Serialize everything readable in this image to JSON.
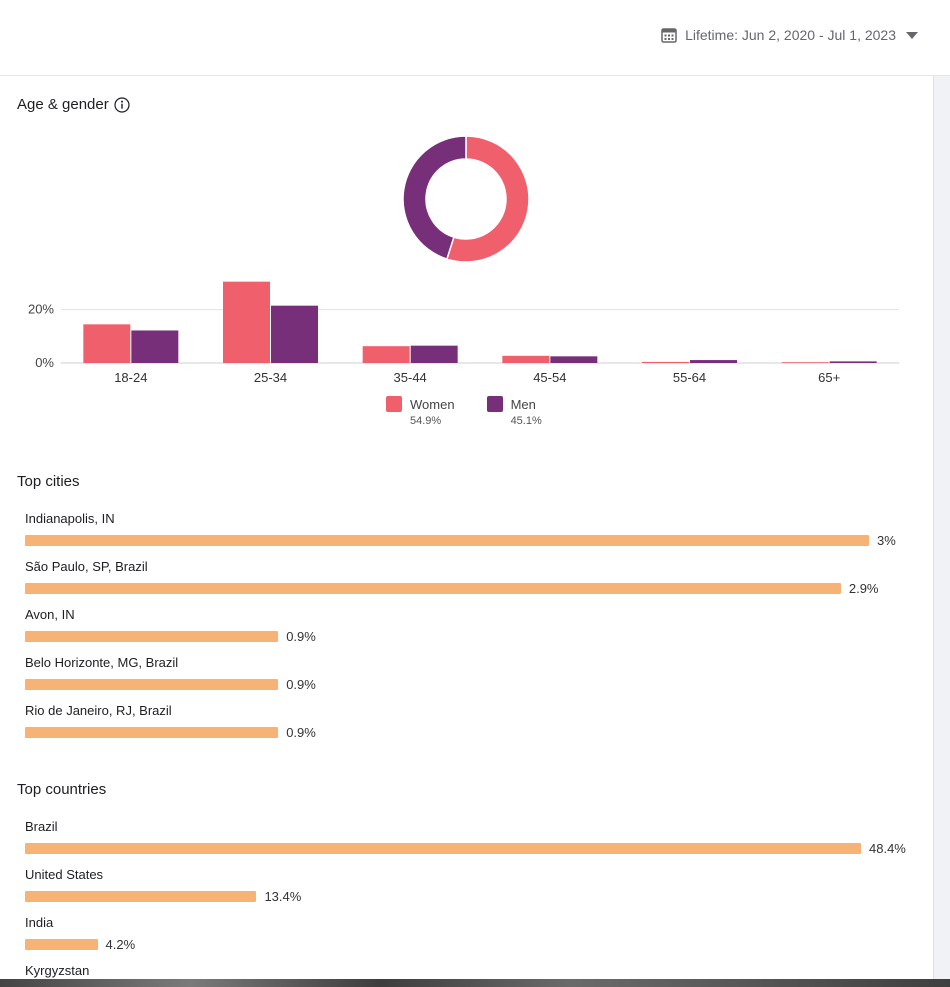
{
  "header": {
    "date_range": "Lifetime: Jun 2, 2020 - Jul 1, 2023"
  },
  "age_gender": {
    "title": "Age & gender",
    "donut": {
      "women_fraction": 0.549,
      "men_fraction": 0.451
    },
    "legend": [
      {
        "name": "Women",
        "pct": "54.9%",
        "color": "#f0606c"
      },
      {
        "name": "Men",
        "pct": "45.1%",
        "color": "#772f7a"
      }
    ]
  },
  "chart_data": {
    "type": "bar",
    "categories": [
      "18-24",
      "25-34",
      "35-44",
      "45-54",
      "55-64",
      "65+"
    ],
    "series": [
      {
        "name": "Women",
        "values": [
          14.5,
          30.5,
          6.3,
          2.7,
          0.4,
          0.3
        ]
      },
      {
        "name": "Men",
        "values": [
          12.2,
          21.5,
          6.5,
          2.5,
          1.1,
          0.6
        ]
      }
    ],
    "ylabel": "",
    "yticks": [
      "20%",
      "0%"
    ],
    "ylim": [
      0,
      30
    ],
    "colors": [
      "#f0606c",
      "#772f7a"
    ]
  },
  "top_cities": {
    "title": "Top cities",
    "items": [
      {
        "label": "Indianapolis, IN",
        "value": 3.0,
        "pct": "3%"
      },
      {
        "label": "São Paulo, SP, Brazil",
        "value": 2.9,
        "pct": "2.9%"
      },
      {
        "label": "Avon, IN",
        "value": 0.9,
        "pct": "0.9%"
      },
      {
        "label": "Belo Horizonte, MG, Brazil",
        "value": 0.9,
        "pct": "0.9%"
      },
      {
        "label": "Rio de Janeiro, RJ, Brazil",
        "value": 0.9,
        "pct": "0.9%"
      }
    ]
  },
  "top_countries": {
    "title": "Top countries",
    "items": [
      {
        "label": "Brazil",
        "value": 48.4,
        "pct": "48.4%"
      },
      {
        "label": "United States",
        "value": 13.4,
        "pct": "13.4%"
      },
      {
        "label": "India",
        "value": 4.2,
        "pct": "4.2%"
      },
      {
        "label": "Kyrgyzstan",
        "value": null,
        "pct": ""
      }
    ]
  }
}
